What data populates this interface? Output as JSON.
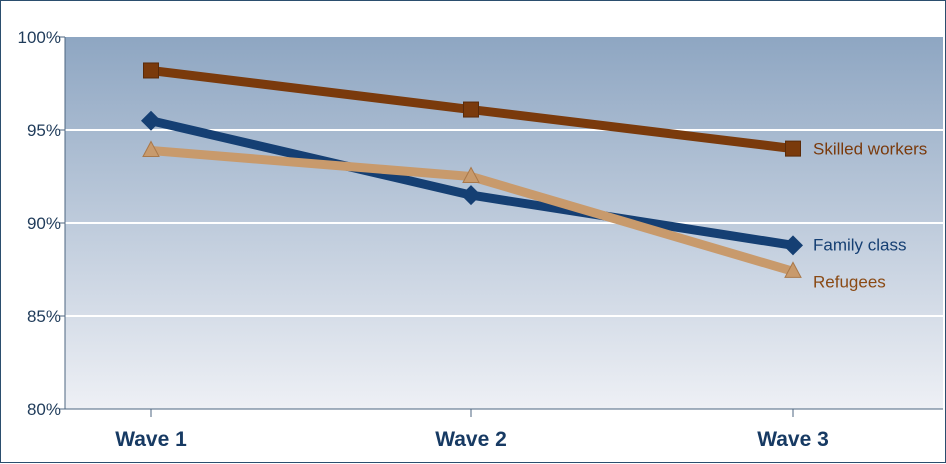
{
  "chart_data": {
    "type": "line",
    "categories": [
      "Wave 1",
      "Wave 2",
      "Wave 3"
    ],
    "y_ticks": [
      "100%",
      "95%",
      "90%",
      "85%",
      "80%"
    ],
    "ylim": [
      80,
      100
    ],
    "grid": true,
    "legend": "inline labels at line ends",
    "series": [
      {
        "name": "Skilled workers",
        "values": [
          98.2,
          96.1,
          94.0
        ],
        "color": "#7a3a0c",
        "marker": "square"
      },
      {
        "name": "Family class",
        "values": [
          95.5,
          91.5,
          88.8
        ],
        "color": "#153f73",
        "marker": "diamond"
      },
      {
        "name": "Refugees",
        "values": [
          93.9,
          92.5,
          87.4
        ],
        "color": "#c89a6c",
        "marker": "triangle"
      }
    ],
    "colors": {
      "plot_top": "#8ea6c2",
      "plot_bottom": "#eef0f5",
      "label_skilled": "#7a3a0c",
      "label_family": "#153f73",
      "label_refugees": "#8a4a14"
    }
  }
}
